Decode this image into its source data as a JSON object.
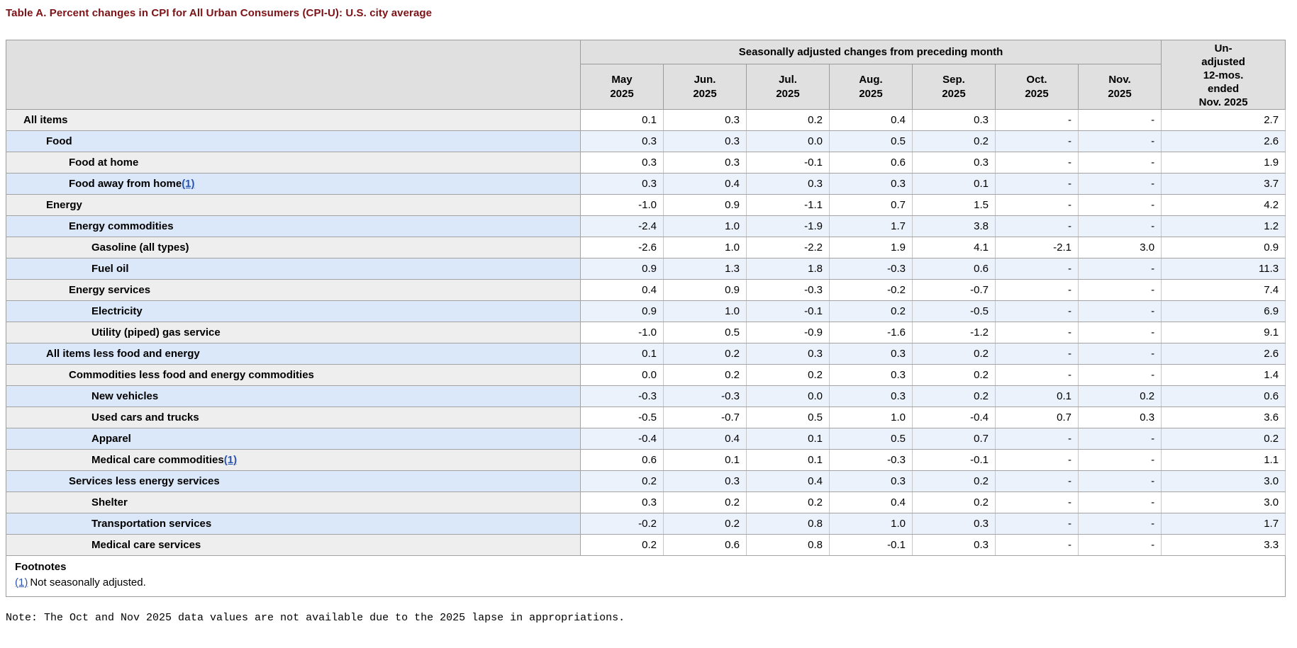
{
  "title": "Table A. Percent changes in CPI for All Urban Consumers (CPI-U): U.S. city average",
  "table": {
    "group_header": "Seasonally adjusted changes from preceding month",
    "month_columns": [
      {
        "line1": "May",
        "line2": "2025"
      },
      {
        "line1": "Jun.",
        "line2": "2025"
      },
      {
        "line1": "Jul.",
        "line2": "2025"
      },
      {
        "line1": "Aug.",
        "line2": "2025"
      },
      {
        "line1": "Sep.",
        "line2": "2025"
      },
      {
        "line1": "Oct.",
        "line2": "2025"
      },
      {
        "line1": "Nov.",
        "line2": "2025"
      }
    ],
    "unadjusted_header_lines": [
      "Un-",
      "adjusted",
      "12-mos.",
      "ended",
      "Nov. 2025"
    ],
    "rows": [
      {
        "label": "All items",
        "indent": 0,
        "footnote_marker": "",
        "values": [
          "0.1",
          "0.3",
          "0.2",
          "0.4",
          "0.3",
          "-",
          "-"
        ],
        "unadjusted": "2.7"
      },
      {
        "label": "Food",
        "indent": 1,
        "footnote_marker": "",
        "values": [
          "0.3",
          "0.3",
          "0.0",
          "0.5",
          "0.2",
          "-",
          "-"
        ],
        "unadjusted": "2.6"
      },
      {
        "label": "Food at home",
        "indent": 2,
        "footnote_marker": "",
        "values": [
          "0.3",
          "0.3",
          "-0.1",
          "0.6",
          "0.3",
          "-",
          "-"
        ],
        "unadjusted": "1.9"
      },
      {
        "label": "Food away from home",
        "indent": 2,
        "footnote_marker": "(1)",
        "values": [
          "0.3",
          "0.4",
          "0.3",
          "0.3",
          "0.1",
          "-",
          "-"
        ],
        "unadjusted": "3.7"
      },
      {
        "label": "Energy",
        "indent": 1,
        "footnote_marker": "",
        "values": [
          "-1.0",
          "0.9",
          "-1.1",
          "0.7",
          "1.5",
          "-",
          "-"
        ],
        "unadjusted": "4.2"
      },
      {
        "label": "Energy commodities",
        "indent": 2,
        "footnote_marker": "",
        "values": [
          "-2.4",
          "1.0",
          "-1.9",
          "1.7",
          "3.8",
          "-",
          "-"
        ],
        "unadjusted": "1.2"
      },
      {
        "label": "Gasoline (all types)",
        "indent": 3,
        "footnote_marker": "",
        "values": [
          "-2.6",
          "1.0",
          "-2.2",
          "1.9",
          "4.1",
          "-2.1",
          "3.0"
        ],
        "unadjusted": "0.9"
      },
      {
        "label": "Fuel oil",
        "indent": 3,
        "footnote_marker": "",
        "values": [
          "0.9",
          "1.3",
          "1.8",
          "-0.3",
          "0.6",
          "-",
          "-"
        ],
        "unadjusted": "11.3"
      },
      {
        "label": "Energy services",
        "indent": 2,
        "footnote_marker": "",
        "values": [
          "0.4",
          "0.9",
          "-0.3",
          "-0.2",
          "-0.7",
          "-",
          "-"
        ],
        "unadjusted": "7.4"
      },
      {
        "label": "Electricity",
        "indent": 3,
        "footnote_marker": "",
        "values": [
          "0.9",
          "1.0",
          "-0.1",
          "0.2",
          "-0.5",
          "-",
          "-"
        ],
        "unadjusted": "6.9"
      },
      {
        "label": "Utility (piped) gas service",
        "indent": 3,
        "footnote_marker": "",
        "values": [
          "-1.0",
          "0.5",
          "-0.9",
          "-1.6",
          "-1.2",
          "-",
          "-"
        ],
        "unadjusted": "9.1"
      },
      {
        "label": "All items less food and energy",
        "indent": 1,
        "footnote_marker": "",
        "values": [
          "0.1",
          "0.2",
          "0.3",
          "0.3",
          "0.2",
          "-",
          "-"
        ],
        "unadjusted": "2.6"
      },
      {
        "label": "Commodities less food and energy commodities",
        "indent": 2,
        "footnote_marker": "",
        "values": [
          "0.0",
          "0.2",
          "0.2",
          "0.3",
          "0.2",
          "-",
          "-"
        ],
        "unadjusted": "1.4"
      },
      {
        "label": "New vehicles",
        "indent": 3,
        "footnote_marker": "",
        "values": [
          "-0.3",
          "-0.3",
          "0.0",
          "0.3",
          "0.2",
          "0.1",
          "0.2"
        ],
        "unadjusted": "0.6"
      },
      {
        "label": "Used cars and trucks",
        "indent": 3,
        "footnote_marker": "",
        "values": [
          "-0.5",
          "-0.7",
          "0.5",
          "1.0",
          "-0.4",
          "0.7",
          "0.3"
        ],
        "unadjusted": "3.6"
      },
      {
        "label": "Apparel",
        "indent": 3,
        "footnote_marker": "",
        "values": [
          "-0.4",
          "0.4",
          "0.1",
          "0.5",
          "0.7",
          "-",
          "-"
        ],
        "unadjusted": "0.2"
      },
      {
        "label": "Medical care commodities",
        "indent": 3,
        "footnote_marker": "(1)",
        "values": [
          "0.6",
          "0.1",
          "0.1",
          "-0.3",
          "-0.1",
          "-",
          "-"
        ],
        "unadjusted": "1.1"
      },
      {
        "label": "Services less energy services",
        "indent": 2,
        "footnote_marker": "",
        "values": [
          "0.2",
          "0.3",
          "0.4",
          "0.3",
          "0.2",
          "-",
          "-"
        ],
        "unadjusted": "3.0"
      },
      {
        "label": "Shelter",
        "indent": 3,
        "footnote_marker": "",
        "values": [
          "0.3",
          "0.2",
          "0.2",
          "0.4",
          "0.2",
          "-",
          "-"
        ],
        "unadjusted": "3.0"
      },
      {
        "label": "Transportation services",
        "indent": 3,
        "footnote_marker": "",
        "values": [
          "-0.2",
          "0.2",
          "0.8",
          "1.0",
          "0.3",
          "-",
          "-"
        ],
        "unadjusted": "1.7"
      },
      {
        "label": "Medical care services",
        "indent": 3,
        "footnote_marker": "",
        "values": [
          "0.2",
          "0.6",
          "0.8",
          "-0.1",
          "0.3",
          "-",
          "-"
        ],
        "unadjusted": "3.3"
      }
    ],
    "footnotes": {
      "heading": "Footnotes",
      "marker": "(1)",
      "text": "Not seasonally adjusted."
    }
  },
  "note": "Note: The Oct and Nov 2025 data values are not available due to the 2025 lapse in appropriations."
}
